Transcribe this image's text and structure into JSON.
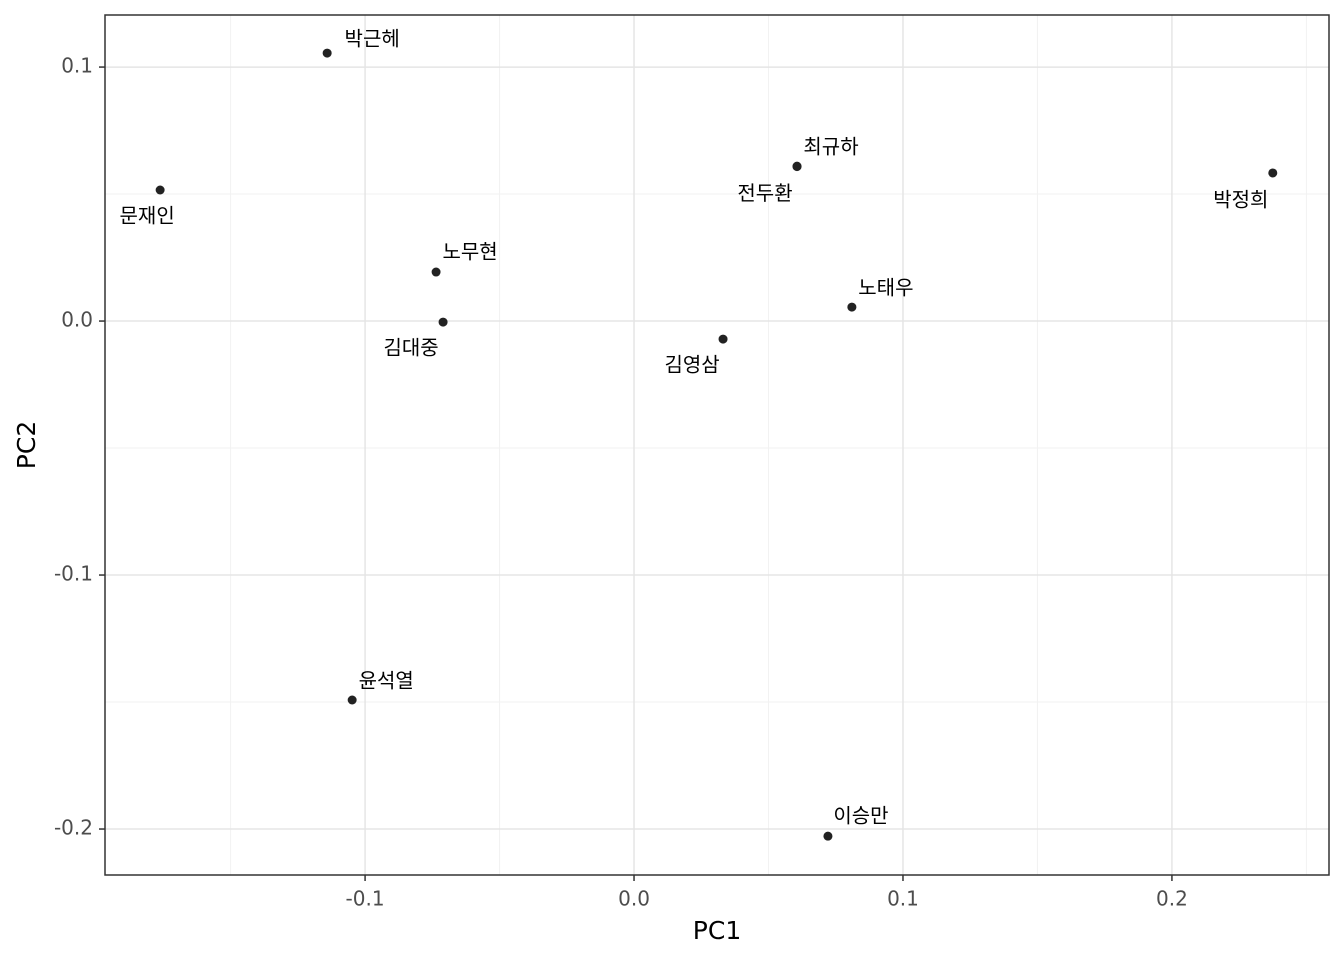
{
  "chart_data": {
    "type": "scatter",
    "x_label": "PC1",
    "y_label": "PC2",
    "labels": [
      "박근헤",
      "문재인",
      "노무현",
      "김대중",
      "윤석열",
      "김영삼",
      "최규하",
      "전두환",
      "노태우",
      "박정희",
      "이승만"
    ],
    "x": [
      -0.1141,
      -0.1762,
      -0.0736,
      -0.071,
      -0.1048,
      0.0331,
      0.0606,
      0.0606,
      0.081,
      0.2375,
      0.0721
    ],
    "values": [
      0.1055,
      0.0516,
      0.0193,
      -0.0004,
      -0.1492,
      -0.0071,
      0.061,
      0.0608,
      0.0055,
      0.0583,
      -0.2028
    ],
    "color": "#222222",
    "xlim": [
      -0.1967,
      0.2584
    ],
    "ylim": [
      -0.2181,
      0.1205
    ],
    "xticks": [
      -0.1,
      {
        "value": 0,
        "label": "0.0"
      },
      0.1,
      0.2
    ],
    "yticks": [
      -0.2,
      -0.1,
      {
        "value": 0,
        "label": "0.0"
      },
      0.1
    ],
    "xminor": [
      -0.15,
      -0.05,
      0.05,
      0.15,
      0.25
    ],
    "yminor": [
      -0.15,
      -0.05,
      0.05
    ],
    "grid": true
  }
}
